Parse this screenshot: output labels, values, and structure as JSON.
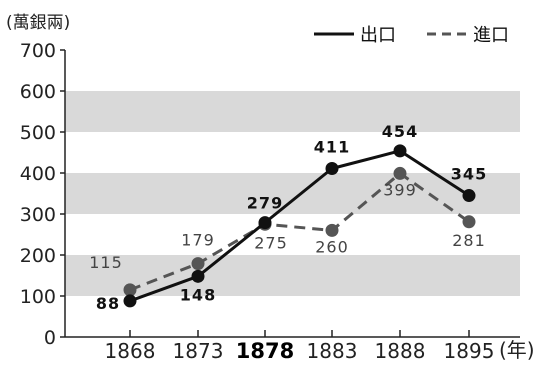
{
  "chart_data": {
    "type": "line",
    "unit_label": "(萬銀兩)",
    "x_unit": "(年)",
    "categories": [
      "1868",
      "1873",
      "1878",
      "1883",
      "1888",
      "1895"
    ],
    "highlight_category": "1878",
    "ylim": [
      0,
      700
    ],
    "yticks": [
      "0",
      "100",
      "200",
      "300",
      "400",
      "500",
      "600",
      "700"
    ],
    "grid": "alternating horizontal bands",
    "legend_position": "top-right",
    "series": [
      {
        "name": "出口",
        "style": "solid",
        "color": "#111111",
        "values": [
          88,
          148,
          279,
          411,
          454,
          345
        ],
        "labels": [
          "88",
          "148",
          "279",
          "411",
          "454",
          "345"
        ]
      },
      {
        "name": "進口",
        "style": "dashed",
        "color": "#555555",
        "values": [
          115,
          179,
          275,
          260,
          399,
          281
        ],
        "labels": [
          "115",
          "179",
          "275",
          "260",
          "399",
          "281"
        ]
      }
    ],
    "colors": {
      "band": "#d9d9d9",
      "axis": "#222222"
    }
  }
}
